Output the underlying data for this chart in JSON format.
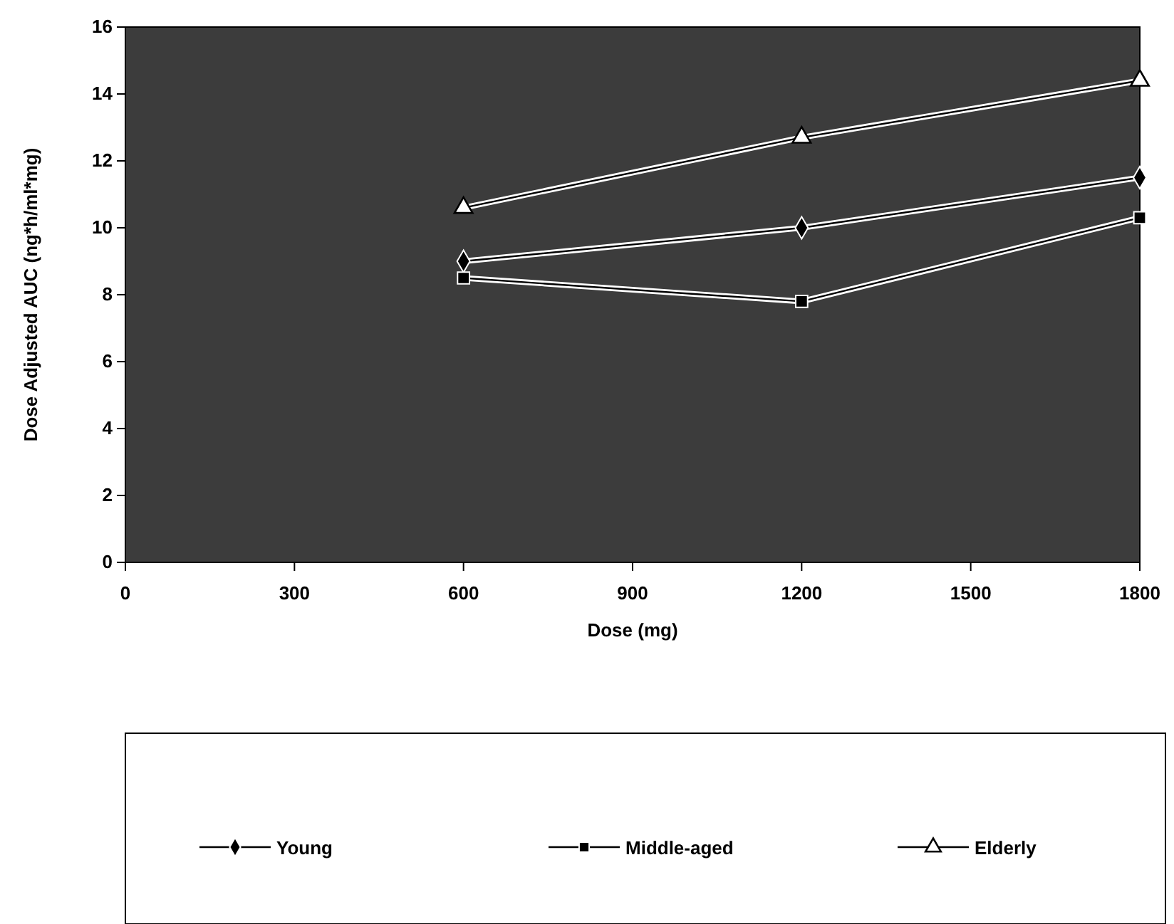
{
  "chart_data": {
    "type": "line",
    "xlabel": "Dose (mg)",
    "ylabel": "Dose Adjusted AUC (ng*h/ml*mg)",
    "xlim": [
      0,
      1800
    ],
    "xticks": [
      0,
      300,
      600,
      900,
      1200,
      1500,
      1800
    ],
    "ylim": [
      0,
      16
    ],
    "yticks": [
      0,
      2,
      4,
      6,
      8,
      10,
      12,
      14,
      16
    ],
    "grid": false,
    "legend": "bottom",
    "series": [
      {
        "name": "Young",
        "color": "#000000",
        "marker": "diamond",
        "x": [
          600,
          1200,
          1800
        ],
        "values": [
          9.0,
          10.0,
          11.5
        ]
      },
      {
        "name": "Middle-aged",
        "color": "#000000",
        "marker": "square",
        "x": [
          600,
          1200,
          1800
        ],
        "values": [
          8.5,
          7.8,
          10.3
        ]
      },
      {
        "name": "Elderly",
        "color": "#000000",
        "marker": "triangle",
        "x": [
          600,
          1200,
          1800
        ],
        "values": [
          10.6,
          12.7,
          14.4
        ]
      }
    ]
  }
}
